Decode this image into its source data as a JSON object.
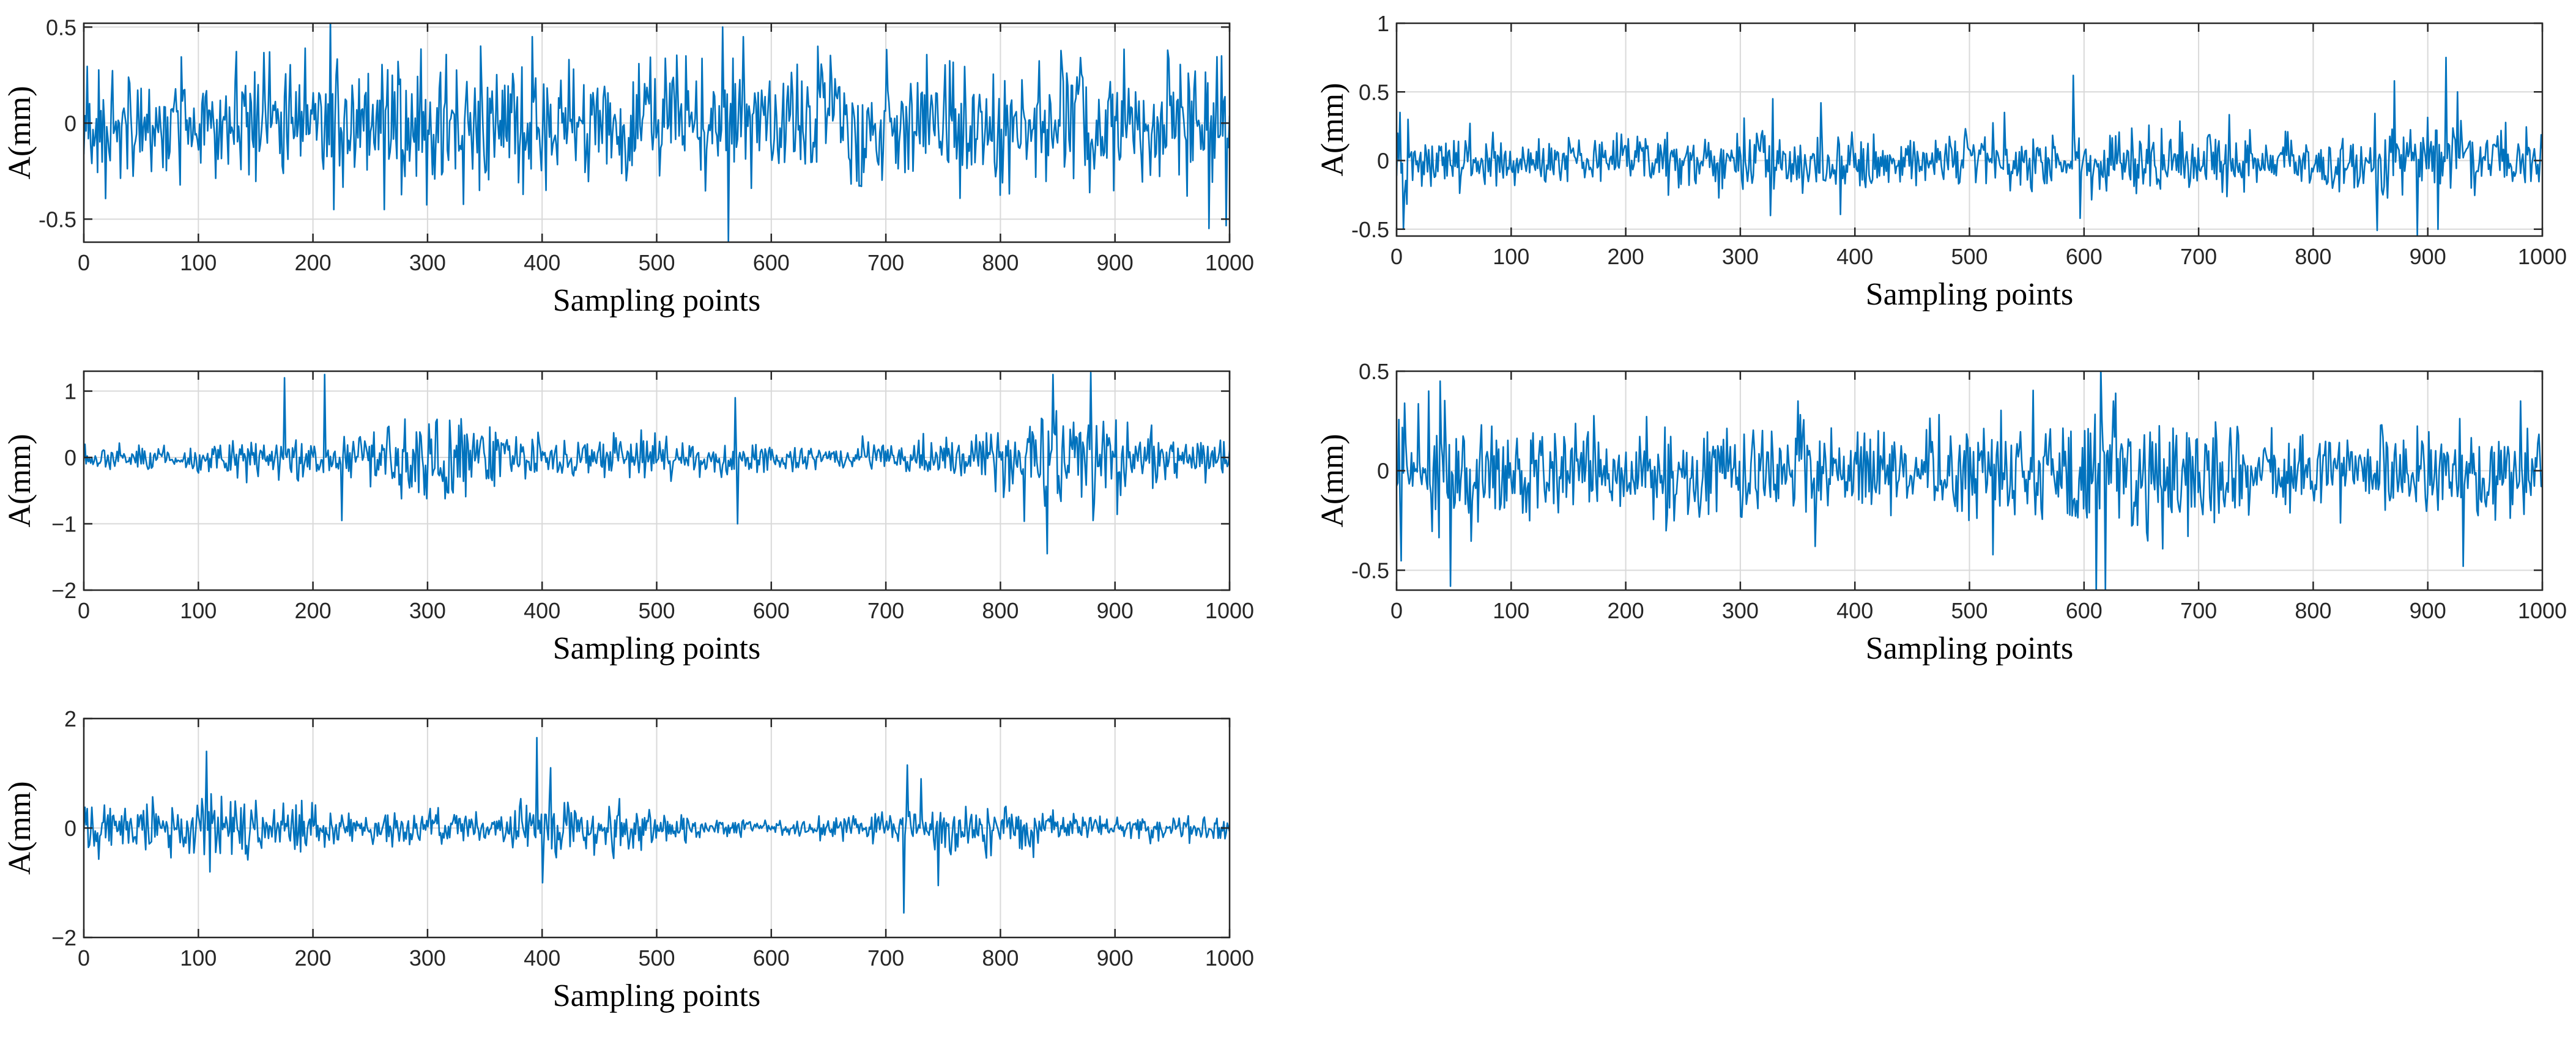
{
  "line_color": "#0072BD",
  "chart_data": [
    {
      "type": "line",
      "title": "",
      "xlabel": "Sampling points",
      "ylabel": "A(mm)",
      "xlim": [
        0,
        1000
      ],
      "ylim": [
        -0.62,
        0.52
      ],
      "xticks": [
        0,
        100,
        200,
        300,
        400,
        500,
        600,
        700,
        800,
        900,
        1000
      ],
      "yticks": [
        -0.5,
        0,
        0.5
      ],
      "ytick_labels": [
        "-0.5",
        "0",
        "0.5"
      ],
      "grid": true,
      "samples": 1000,
      "envelope": [
        0.26,
        0.26,
        0.27,
        0.28,
        0.29,
        0.3,
        0.3,
        0.3,
        0.3,
        0.28,
        0.26,
        0.26,
        0.27,
        0.28,
        0.3,
        0.3,
        0.29,
        0.28,
        0.28,
        0.29,
        0.3,
        0.3
      ],
      "spikes": [
        [
          215,
          0.55
        ],
        [
          218,
          -0.45
        ],
        [
          262,
          -0.45
        ],
        [
          345,
          -0.35
        ],
        [
          391,
          0.45
        ],
        [
          403,
          -0.35
        ],
        [
          557,
          0.5
        ],
        [
          562,
          -0.62
        ],
        [
          575,
          0.45
        ],
        [
          640,
          0.4
        ],
        [
          945,
          0.38
        ],
        [
          962,
          -0.38
        ],
        [
          992,
          0.35
        ]
      ]
    },
    {
      "type": "line",
      "title": "",
      "xlabel": "Sampling points",
      "ylabel": "A(mm)",
      "xlim": [
        0,
        1000
      ],
      "ylim": [
        -0.55,
        1.0
      ],
      "xticks": [
        0,
        100,
        200,
        300,
        400,
        500,
        600,
        700,
        800,
        900,
        1000
      ],
      "yticks": [
        -0.5,
        0,
        0.5,
        1
      ],
      "ytick_labels": [
        "-0.5",
        "0",
        "0.5",
        "1"
      ],
      "grid": true,
      "samples": 1000,
      "envelope": [
        0.3,
        0.18,
        0.15,
        0.15,
        0.15,
        0.16,
        0.18,
        0.2,
        0.18,
        0.16,
        0.17,
        0.19,
        0.19,
        0.2,
        0.21,
        0.2,
        0.19,
        0.2,
        0.24,
        0.26,
        0.2,
        0.18
      ],
      "spikes": [
        [
          3,
          0.35
        ],
        [
          6,
          -0.5
        ],
        [
          10,
          0.3
        ],
        [
          328,
          0.45
        ],
        [
          326,
          -0.4
        ],
        [
          370,
          0.42
        ],
        [
          530,
          0.35
        ],
        [
          590,
          0.62
        ],
        [
          596,
          -0.42
        ],
        [
          870,
          0.58
        ],
        [
          908,
          -0.5
        ],
        [
          915,
          0.75
        ],
        [
          925,
          0.5
        ]
      ]
    },
    {
      "type": "line",
      "title": "",
      "xlabel": "Sampling points",
      "ylabel": "A(mm)",
      "xlim": [
        0,
        1000
      ],
      "ylim": [
        -2,
        1.3
      ],
      "xticks": [
        0,
        100,
        200,
        300,
        400,
        500,
        600,
        700,
        800,
        900,
        1000
      ],
      "yticks": [
        -2,
        -1,
        0,
        1
      ],
      "ytick_labels": [
        "−2",
        "−1",
        "0",
        "1"
      ],
      "grid": true,
      "samples": 1000,
      "envelope": [
        0.14,
        0.15,
        0.18,
        0.22,
        0.3,
        0.25,
        0.3,
        0.6,
        0.6,
        0.35,
        0.3,
        0.3,
        0.32,
        0.3,
        0.2,
        0.15,
        0.15,
        0.2,
        0.3,
        0.45,
        0.62,
        0.6,
        0.45,
        0.35,
        0.2
      ],
      "spikes": [
        [
          175,
          1.2
        ],
        [
          210,
          1.25
        ],
        [
          225,
          -0.95
        ],
        [
          568,
          0.9
        ],
        [
          570,
          -1.0
        ],
        [
          840,
          -1.45
        ],
        [
          845,
          1.25
        ],
        [
          878,
          1.28
        ],
        [
          880,
          -0.95
        ]
      ]
    },
    {
      "type": "line",
      "title": "",
      "xlabel": "Sampling points",
      "ylabel": "A(mm)",
      "xlim": [
        0,
        1000
      ],
      "ylim": [
        -0.6,
        0.5
      ],
      "xticks": [
        0,
        100,
        200,
        300,
        400,
        500,
        600,
        700,
        800,
        900,
        1000
      ],
      "yticks": [
        -0.5,
        0,
        0.5
      ],
      "ytick_labels": [
        "-0.5",
        "0",
        "0.5"
      ],
      "grid": true,
      "samples": 1000,
      "envelope": [
        0.24,
        0.24,
        0.22,
        0.2,
        0.22,
        0.24,
        0.24,
        0.22,
        0.21,
        0.21,
        0.22,
        0.24,
        0.24,
        0.28,
        0.26,
        0.22,
        0.2,
        0.2,
        0.2,
        0.22,
        0.22
      ],
      "spikes": [
        [
          28,
          0.4
        ],
        [
          38,
          0.45
        ],
        [
          47,
          -0.58
        ],
        [
          350,
          0.35
        ],
        [
          365,
          -0.38
        ],
        [
          610,
          -0.62
        ],
        [
          614,
          0.52
        ],
        [
          618,
          -0.6
        ],
        [
          625,
          0.35
        ],
        [
          930,
          -0.48
        ],
        [
          980,
          0.35
        ]
      ]
    },
    {
      "type": "line",
      "title": "",
      "xlabel": "Sampling points",
      "ylabel": "A(mm)",
      "xlim": [
        0,
        1000
      ],
      "ylim": [
        -2,
        2
      ],
      "xticks": [
        0,
        100,
        200,
        300,
        400,
        500,
        600,
        700,
        800,
        900,
        1000
      ],
      "yticks": [
        -2,
        0,
        2
      ],
      "ytick_labels": [
        "−2",
        "0",
        "2"
      ],
      "grid": true,
      "samples": 1000,
      "envelope": [
        0.45,
        0.4,
        0.45,
        0.45,
        0.4,
        0.25,
        0.25,
        0.3,
        0.3,
        0.45,
        0.42,
        0.3,
        0.15,
        0.12,
        0.15,
        0.2,
        0.3,
        0.45,
        0.35,
        0.22,
        0.2,
        0.22,
        0.25
      ],
      "spikes": [
        [
          107,
          1.4
        ],
        [
          110,
          -0.8
        ],
        [
          395,
          1.65
        ],
        [
          400,
          -1.0
        ],
        [
          407,
          1.1
        ],
        [
          715,
          -1.55
        ],
        [
          718,
          1.15
        ],
        [
          730,
          0.9
        ],
        [
          745,
          -1.05
        ]
      ]
    }
  ]
}
